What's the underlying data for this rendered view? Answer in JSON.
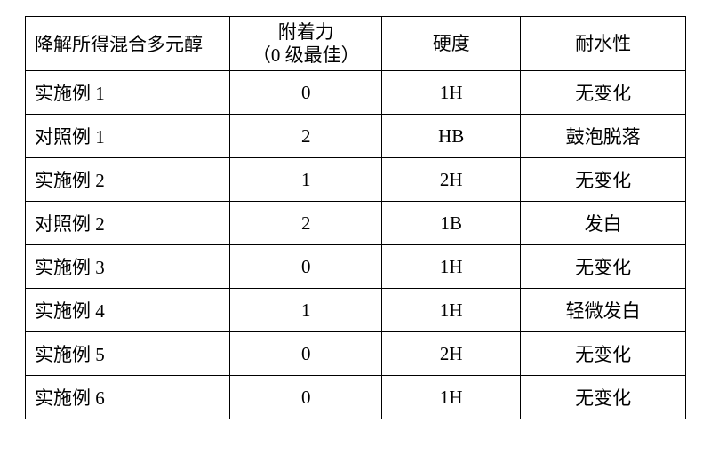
{
  "table": {
    "type": "table",
    "background_color": "#ffffff",
    "border_color": "#000000",
    "text_color": "#000000",
    "font_size_pt": 16,
    "column_widths_pct": [
      31,
      23,
      21,
      25
    ],
    "column_align": [
      "left",
      "center",
      "center",
      "center"
    ],
    "headers": {
      "col0": "降解所得混合多元醇",
      "col1_line1": "附着力",
      "col1_line2": "（0 级最佳）",
      "col2": "硬度",
      "col3": "耐水性"
    },
    "rows": [
      {
        "label": "实施例 1",
        "adhesion": "0",
        "hardness": "1H",
        "water": "无变化"
      },
      {
        "label": "对照例 1",
        "adhesion": "2",
        "hardness": "HB",
        "water": "鼓泡脱落"
      },
      {
        "label": "实施例 2",
        "adhesion": "1",
        "hardness": "2H",
        "water": "无变化"
      },
      {
        "label": "对照例 2",
        "adhesion": "2",
        "hardness": "1B",
        "water": "发白"
      },
      {
        "label": "实施例 3",
        "adhesion": "0",
        "hardness": "1H",
        "water": "无变化"
      },
      {
        "label": "实施例 4",
        "adhesion": "1",
        "hardness": "1H",
        "water": "轻微发白"
      },
      {
        "label": "实施例 5",
        "adhesion": "0",
        "hardness": "2H",
        "water": "无变化"
      },
      {
        "label": "实施例 6",
        "adhesion": "0",
        "hardness": "1H",
        "water": "无变化"
      }
    ]
  }
}
